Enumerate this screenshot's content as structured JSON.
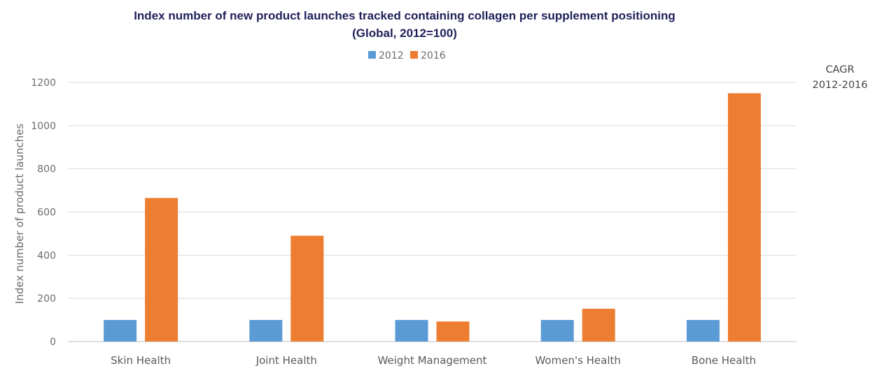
{
  "chart_data": {
    "type": "bar",
    "title": "Index number of new product launches tracked containing collagen per supplement positioning",
    "subtitle": "(Global, 2012=100)",
    "xlabel": "",
    "ylabel": "Index number of product launches",
    "categories": [
      "Skin Health",
      "Joint Health",
      "Weight Management",
      "Women's Health",
      "Bone Health"
    ],
    "series": [
      {
        "name": "2012",
        "color": "#5b9bd5",
        "values": [
          100,
          100,
          100,
          100,
          100
        ]
      },
      {
        "name": "2016",
        "color": "#ed7d31",
        "values": [
          665,
          490,
          93,
          152,
          1150
        ]
      }
    ],
    "ylim": [
      0,
      1200
    ],
    "yticks": [
      0,
      200,
      400,
      600,
      800,
      1000,
      1200
    ],
    "grid": true,
    "legend": "top-center",
    "side_note": {
      "line1": "CAGR",
      "line2": "2012-2016"
    }
  }
}
